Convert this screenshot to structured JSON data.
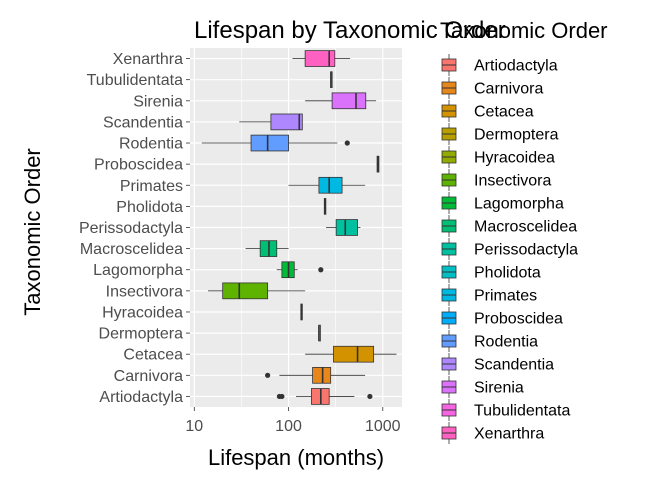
{
  "chart_data": {
    "type": "boxplot",
    "orientation": "horizontal",
    "title": "Lifespan by Taxonomic Order",
    "xlabel": "Lifespan (months)",
    "ylabel": "Taxonomic Order",
    "x_scale": "log10",
    "xlim": [
      9,
      1600
    ],
    "x_ticks": [
      {
        "value": 10,
        "label": "10"
      },
      {
        "value": 100,
        "label": "100"
      },
      {
        "value": 1000,
        "label": "1000"
      }
    ],
    "legend_title": "Taxonomic Order",
    "legend_position": "right",
    "categories": [
      {
        "name": "Artiodactyla",
        "color": "#F8766D",
        "whisker_low": 120,
        "q1": 175,
        "median": 220,
        "q3": 270,
        "whisker_high": 500,
        "outliers": [
          80,
          85,
          730
        ]
      },
      {
        "name": "Carnivora",
        "color": "#E7861B",
        "whisker_low": 80,
        "q1": 180,
        "median": 230,
        "q3": 280,
        "whisker_high": 650,
        "outliers": [
          60
        ]
      },
      {
        "name": "Cetacea",
        "color": "#D39200",
        "whisker_low": 150,
        "q1": 300,
        "median": 540,
        "q3": 800,
        "whisker_high": 1400,
        "outliers": []
      },
      {
        "name": "Dermoptera",
        "color": "#B79F00",
        "whisker_low": 210,
        "q1": 210,
        "median": 210,
        "q3": 210,
        "whisker_high": 210,
        "outliers": []
      },
      {
        "name": "Hyracoidea",
        "color": "#93AA00",
        "whisker_low": 135,
        "q1": 135,
        "median": 138,
        "q3": 140,
        "whisker_high": 140,
        "outliers": []
      },
      {
        "name": "Insectivora",
        "color": "#5EB300",
        "whisker_low": 14,
        "q1": 20,
        "median": 30,
        "q3": 60,
        "whisker_high": 150,
        "outliers": []
      },
      {
        "name": "Lagomorpha",
        "color": "#00BA38",
        "whisker_low": 75,
        "q1": 85,
        "median": 100,
        "q3": 115,
        "whisker_high": 125,
        "outliers": [
          220
        ]
      },
      {
        "name": "Macroscelidea",
        "color": "#00BF74",
        "whisker_low": 35,
        "q1": 50,
        "median": 62,
        "q3": 75,
        "whisker_high": 100,
        "outliers": []
      },
      {
        "name": "Perissodactyla",
        "color": "#00C19F",
        "whisker_low": 250,
        "q1": 320,
        "median": 400,
        "q3": 540,
        "whisker_high": 580,
        "outliers": []
      },
      {
        "name": "Pholidota",
        "color": "#00BFC4",
        "whisker_low": 240,
        "q1": 240,
        "median": 242,
        "q3": 245,
        "whisker_high": 245,
        "outliers": []
      },
      {
        "name": "Primates",
        "color": "#00B9E3",
        "whisker_low": 100,
        "q1": 210,
        "median": 270,
        "q3": 370,
        "whisker_high": 650,
        "outliers": []
      },
      {
        "name": "Proboscidea",
        "color": "#00ADFA",
        "whisker_low": 860,
        "q1": 870,
        "median": 890,
        "q3": 910,
        "whisker_high": 920,
        "outliers": []
      },
      {
        "name": "Rodentia",
        "color": "#619CFF",
        "whisker_low": 12,
        "q1": 40,
        "median": 60,
        "q3": 100,
        "whisker_high": 330,
        "outliers": [
          420
        ]
      },
      {
        "name": "Scandentia",
        "color": "#AE87FF",
        "whisker_low": 30,
        "q1": 65,
        "median": 130,
        "q3": 140,
        "whisker_high": 140,
        "outliers": []
      },
      {
        "name": "Sirenia",
        "color": "#DB72FB",
        "whisker_low": 150,
        "q1": 290,
        "median": 520,
        "q3": 660,
        "whisker_high": 850,
        "outliers": []
      },
      {
        "name": "Tubulidentata",
        "color": "#F564E3",
        "whisker_low": 280,
        "q1": 280,
        "median": 282,
        "q3": 285,
        "whisker_high": 285,
        "outliers": []
      },
      {
        "name": "Xenarthra",
        "color": "#FF61C3",
        "whisker_low": 110,
        "q1": 150,
        "median": 270,
        "q3": 310,
        "whisker_high": 450,
        "outliers": []
      }
    ],
    "panel_background": "#EBEBEB",
    "grid": true
  }
}
